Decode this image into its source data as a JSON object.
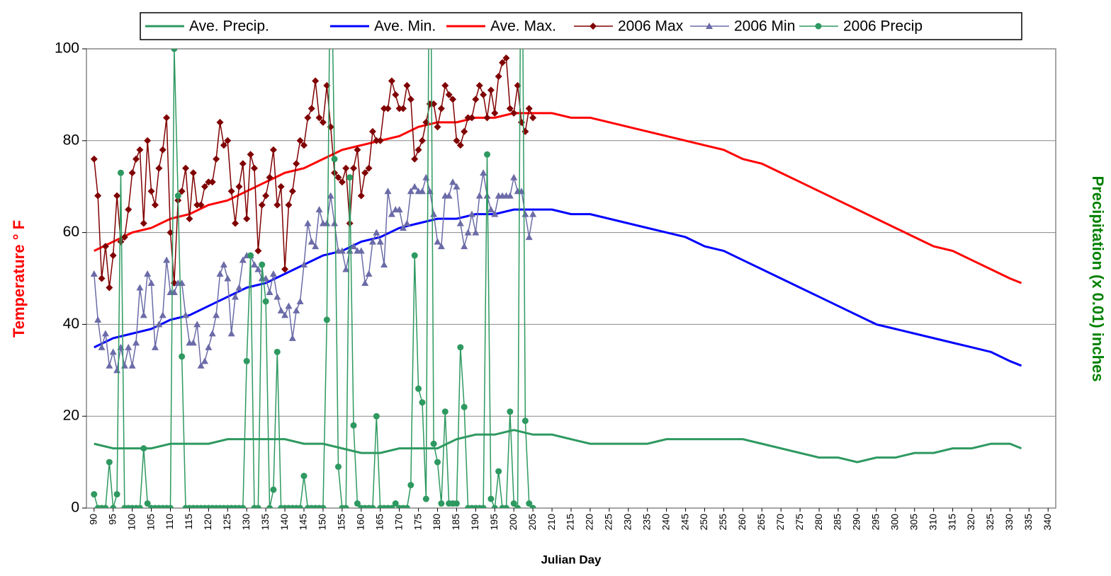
{
  "chart_data": {
    "type": "line",
    "xlabel": "Julian Day",
    "ylabel": "Temperature ° F",
    "y2label": "Precipitation (x 0.01) inches",
    "xlim": [
      88,
      342
    ],
    "xticks": [
      90,
      95,
      100,
      105,
      110,
      115,
      120,
      125,
      130,
      135,
      140,
      145,
      150,
      155,
      160,
      165,
      170,
      175,
      180,
      185,
      190,
      195,
      200,
      205,
      210,
      215,
      220,
      225,
      230,
      235,
      240,
      245,
      250,
      255,
      260,
      265,
      270,
      275,
      280,
      285,
      290,
      295,
      300,
      305,
      310,
      315,
      320,
      325,
      330,
      335,
      340
    ],
    "ylim": [
      0,
      100
    ],
    "yticks": [
      0,
      20,
      40,
      60,
      80,
      100
    ],
    "grid": true,
    "legend": "top",
    "series": [
      {
        "name": "Ave. Precip.",
        "color": "#2e9960",
        "marker": null,
        "x": [
          90,
          95,
          100,
          105,
          110,
          115,
          120,
          125,
          130,
          135,
          140,
          145,
          150,
          155,
          160,
          165,
          170,
          175,
          180,
          185,
          190,
          195,
          200,
          205,
          210,
          215,
          220,
          225,
          230,
          235,
          240,
          245,
          250,
          255,
          260,
          265,
          270,
          275,
          280,
          285,
          290,
          295,
          300,
          305,
          310,
          315,
          320,
          325,
          330,
          333
        ],
        "values": [
          14,
          13,
          13,
          13,
          14,
          14,
          14,
          15,
          15,
          15,
          15,
          14,
          14,
          13,
          12,
          12,
          13,
          13,
          13,
          15,
          16,
          16,
          17,
          16,
          16,
          15,
          14,
          14,
          14,
          14,
          15,
          15,
          15,
          15,
          15,
          14,
          13,
          12,
          11,
          11,
          10,
          11,
          11,
          12,
          12,
          13,
          13,
          14,
          14,
          13
        ]
      },
      {
        "name": "Ave. Min.",
        "color": "#0000ff",
        "marker": null,
        "x": [
          90,
          95,
          100,
          105,
          110,
          115,
          120,
          125,
          130,
          135,
          140,
          145,
          150,
          155,
          160,
          165,
          170,
          175,
          180,
          185,
          190,
          195,
          200,
          205,
          210,
          215,
          220,
          225,
          230,
          235,
          240,
          245,
          250,
          255,
          260,
          265,
          270,
          275,
          280,
          285,
          290,
          295,
          300,
          305,
          310,
          315,
          320,
          325,
          330,
          333
        ],
        "values": [
          35,
          37,
          38,
          39,
          41,
          42,
          44,
          46,
          48,
          49,
          51,
          53,
          55,
          56,
          58,
          59,
          61,
          62,
          63,
          63,
          64,
          64,
          65,
          65,
          65,
          64,
          64,
          63,
          62,
          61,
          60,
          59,
          57,
          56,
          54,
          52,
          50,
          48,
          46,
          44,
          42,
          40,
          39,
          38,
          37,
          36,
          35,
          34,
          32,
          31
        ]
      },
      {
        "name": "Ave. Max.",
        "color": "#ff0000",
        "marker": null,
        "x": [
          90,
          95,
          100,
          105,
          110,
          115,
          120,
          125,
          130,
          135,
          140,
          145,
          150,
          155,
          160,
          165,
          170,
          175,
          180,
          185,
          190,
          195,
          200,
          205,
          210,
          215,
          220,
          225,
          230,
          235,
          240,
          245,
          250,
          255,
          260,
          265,
          270,
          275,
          280,
          285,
          290,
          295,
          300,
          305,
          310,
          315,
          320,
          325,
          330,
          333
        ],
        "values": [
          56,
          58,
          60,
          61,
          63,
          64,
          66,
          67,
          69,
          71,
          73,
          74,
          76,
          78,
          79,
          80,
          81,
          83,
          84,
          84,
          85,
          85,
          86,
          86,
          86,
          85,
          85,
          84,
          83,
          82,
          81,
          80,
          79,
          78,
          76,
          75,
          73,
          71,
          69,
          67,
          65,
          63,
          61,
          59,
          57,
          56,
          54,
          52,
          50,
          49
        ]
      },
      {
        "name": "2006 Max",
        "color": "#800000",
        "marker": "diamond",
        "x": [
          90,
          91,
          92,
          93,
          94,
          95,
          96,
          97,
          98,
          99,
          100,
          101,
          102,
          103,
          104,
          105,
          106,
          107,
          108,
          109,
          110,
          111,
          112,
          113,
          114,
          115,
          116,
          117,
          118,
          119,
          120,
          121,
          122,
          123,
          124,
          125,
          126,
          127,
          128,
          129,
          130,
          131,
          132,
          133,
          134,
          135,
          136,
          137,
          138,
          139,
          140,
          141,
          142,
          143,
          144,
          145,
          146,
          147,
          148,
          149,
          150,
          151,
          152,
          153,
          154,
          155,
          156,
          157,
          158,
          159,
          160,
          161,
          162,
          163,
          164,
          165,
          166,
          167,
          168,
          169,
          170,
          171,
          172,
          173,
          174,
          175,
          176,
          177,
          178,
          179,
          180,
          181,
          182,
          183,
          184,
          185,
          186,
          187,
          188,
          189,
          190,
          191,
          192,
          193,
          194,
          195,
          196,
          197,
          198,
          199,
          200,
          201,
          202,
          203,
          204,
          205
        ],
        "values": [
          76,
          68,
          50,
          57,
          48,
          55,
          68,
          58,
          59,
          65,
          73,
          76,
          78,
          62,
          80,
          69,
          66,
          74,
          78,
          85,
          60,
          49,
          67,
          69,
          74,
          63,
          73,
          66,
          66,
          70,
          71,
          71,
          76,
          84,
          79,
          80,
          69,
          62,
          70,
          75,
          63,
          77,
          74,
          56,
          66,
          68,
          72,
          78,
          66,
          70,
          52,
          66,
          69,
          75,
          80,
          79,
          85,
          87,
          93,
          85,
          84,
          92,
          83,
          73,
          72,
          71,
          74,
          62,
          74,
          78,
          68,
          73,
          74,
          82,
          80,
          80,
          87,
          87,
          93,
          90,
          87,
          87,
          92,
          89,
          76,
          78,
          80,
          84,
          88,
          88,
          83,
          87,
          92,
          90,
          89,
          80,
          79,
          82,
          85,
          85,
          89,
          92,
          90,
          85,
          91,
          86,
          94,
          97,
          98,
          87,
          86,
          92,
          84,
          82,
          87,
          85
        ]
      },
      {
        "name": "2006 Min",
        "color": "#6b6ba8",
        "marker": "triangle",
        "x": [
          90,
          91,
          92,
          93,
          94,
          95,
          96,
          97,
          98,
          99,
          100,
          101,
          102,
          103,
          104,
          105,
          106,
          107,
          108,
          109,
          110,
          111,
          112,
          113,
          114,
          115,
          116,
          117,
          118,
          119,
          120,
          121,
          122,
          123,
          124,
          125,
          126,
          127,
          128,
          129,
          130,
          131,
          132,
          133,
          134,
          135,
          136,
          137,
          138,
          139,
          140,
          141,
          142,
          143,
          144,
          145,
          146,
          147,
          148,
          149,
          150,
          151,
          152,
          153,
          154,
          155,
          156,
          157,
          158,
          159,
          160,
          161,
          162,
          163,
          164,
          165,
          166,
          167,
          168,
          169,
          170,
          171,
          172,
          173,
          174,
          175,
          176,
          177,
          178,
          179,
          180,
          181,
          182,
          183,
          184,
          185,
          186,
          187,
          188,
          189,
          190,
          191,
          192,
          193,
          194,
          195,
          196,
          197,
          198,
          199,
          200,
          201,
          202,
          203,
          204,
          205
        ],
        "values": [
          51,
          41,
          35,
          38,
          31,
          34,
          30,
          35,
          31,
          35,
          31,
          36,
          48,
          42,
          51,
          49,
          35,
          40,
          42,
          54,
          47,
          47,
          49,
          49,
          42,
          36,
          36,
          40,
          31,
          32,
          35,
          38,
          42,
          51,
          53,
          50,
          38,
          46,
          48,
          54,
          55,
          55,
          53,
          52,
          50,
          50,
          47,
          51,
          46,
          43,
          42,
          44,
          37,
          43,
          45,
          53,
          62,
          58,
          57,
          65,
          62,
          62,
          68,
          62,
          56,
          56,
          52,
          56,
          57,
          56,
          56,
          49,
          51,
          58,
          60,
          58,
          53,
          69,
          64,
          65,
          65,
          61,
          62,
          69,
          70,
          69,
          69,
          72,
          69,
          64,
          58,
          57,
          68,
          68,
          71,
          70,
          62,
          57,
          60,
          64,
          60,
          68,
          73,
          68,
          65,
          64,
          68,
          68,
          68,
          68,
          72,
          69,
          69,
          64,
          59,
          64
        ]
      },
      {
        "name": "2006 Precip",
        "color": "#2e9960",
        "marker": "circle",
        "x": [
          90,
          91,
          92,
          93,
          94,
          95,
          96,
          97,
          98,
          99,
          100,
          101,
          102,
          103,
          104,
          105,
          106,
          107,
          108,
          109,
          110,
          111,
          112,
          113,
          114,
          115,
          116,
          117,
          118,
          119,
          120,
          121,
          122,
          123,
          124,
          125,
          126,
          127,
          128,
          129,
          130,
          131,
          132,
          133,
          134,
          135,
          136,
          137,
          138,
          139,
          140,
          141,
          142,
          143,
          144,
          145,
          146,
          147,
          148,
          149,
          150,
          151,
          152,
          153,
          154,
          155,
          156,
          157,
          158,
          159,
          160,
          161,
          162,
          163,
          164,
          165,
          166,
          167,
          168,
          169,
          170,
          171,
          172,
          173,
          174,
          175,
          176,
          177,
          178,
          179,
          180,
          181,
          182,
          183,
          184,
          185,
          186,
          187,
          188,
          189,
          190,
          191,
          192,
          193,
          194,
          195,
          196,
          197,
          198,
          199,
          200,
          201,
          202,
          203,
          204,
          205
        ],
        "values": [
          3,
          0,
          0,
          0,
          10,
          0,
          3,
          73,
          0,
          0,
          0,
          0,
          0,
          13,
          1,
          0,
          0,
          0,
          0,
          0,
          0,
          100,
          68,
          33,
          0,
          0,
          0,
          0,
          0,
          0,
          0,
          0,
          0,
          0,
          0,
          0,
          0,
          0,
          0,
          0,
          32,
          55,
          0,
          0,
          53,
          45,
          0,
          4,
          34,
          0,
          0,
          0,
          0,
          0,
          0,
          7,
          0,
          0,
          0,
          0,
          0,
          41,
          130,
          76,
          9,
          0,
          0,
          72,
          18,
          1,
          0,
          0,
          0,
          0,
          20,
          0,
          0,
          0,
          0,
          1,
          0,
          0,
          0,
          5,
          55,
          26,
          23,
          2,
          150,
          14,
          10,
          1,
          21,
          1,
          1,
          1,
          35,
          22,
          0,
          0,
          0,
          0,
          0,
          77,
          2,
          0,
          8,
          0,
          0,
          21,
          1,
          0,
          150,
          19,
          1,
          0
        ]
      }
    ]
  }
}
